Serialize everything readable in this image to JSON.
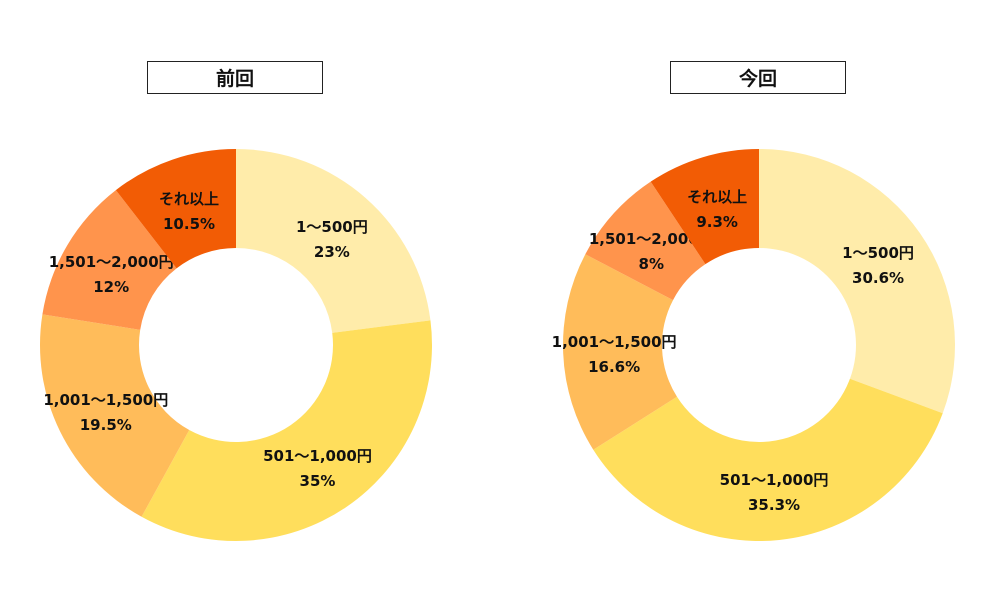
{
  "chart_data": [
    {
      "type": "pie",
      "title": "前回",
      "categories": [
        "1～500円",
        "501～1,000円",
        "1,001～1,500円",
        "1,501～2,000円",
        "それ以上"
      ],
      "values": [
        23,
        35,
        19.5,
        12,
        10.5
      ],
      "labels": [
        "23%",
        "35%",
        "19.5%",
        "12%",
        "10.5%"
      ],
      "colors": [
        "#FFECAA",
        "#FFDE5C",
        "#FFBC5A",
        "#FF944C",
        "#F25C05"
      ]
    },
    {
      "type": "pie",
      "title": "今回",
      "categories": [
        "1～500円",
        "501～1,000円",
        "1,001～1,500円",
        "1,501～2,000円",
        "それ以上"
      ],
      "values": [
        30.6,
        35.3,
        16.6,
        8,
        9.3
      ],
      "labels": [
        "30.6%",
        "35.3%",
        "16.6%",
        "8%",
        "9.3%"
      ],
      "colors": [
        "#FFECAA",
        "#FFDE5C",
        "#FFBC5A",
        "#FF944C",
        "#F25C05"
      ]
    }
  ]
}
